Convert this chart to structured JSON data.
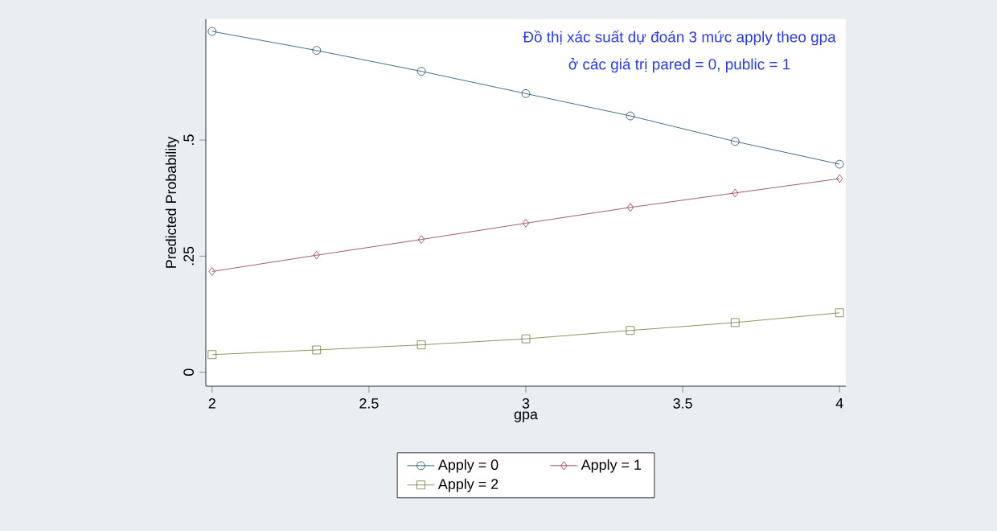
{
  "chart_data": {
    "type": "line",
    "xlabel": "gpa",
    "ylabel": "Predicted Probability",
    "annotations": [
      "Đồ thị xác suất dự đoán 3 mức apply theo gpa",
      "ở các giá trị pared = 0, public = 1"
    ],
    "x": [
      2,
      2.333,
      2.667,
      3,
      3.333,
      3.667,
      4
    ],
    "series": [
      {
        "name": "Apply = 0",
        "color": "#1a476f",
        "marker": "circle",
        "values": [
          0.734,
          0.693,
          0.648,
          0.6,
          0.552,
          0.497,
          0.448
        ]
      },
      {
        "name": "Apply = 1",
        "color": "#90353b",
        "marker": "diamond",
        "values": [
          0.217,
          0.252,
          0.286,
          0.321,
          0.355,
          0.386,
          0.417
        ]
      },
      {
        "name": "Apply = 2",
        "color": "#6e7a3c",
        "marker": "square",
        "values": [
          0.038,
          0.048,
          0.059,
          0.072,
          0.09,
          0.107,
          0.128
        ]
      }
    ],
    "xlim": [
      1.98,
      4.02
    ],
    "ylim": [
      -0.03,
      0.76
    ],
    "xticks": [
      2,
      2.5,
      3,
      3.5,
      4
    ],
    "yticks": [
      0,
      {
        "value": 0.25,
        "label": ".25"
      },
      {
        "value": 0.5,
        "label": ".5"
      }
    ],
    "grid": false,
    "legend": "bottom",
    "line_style": "solid"
  }
}
